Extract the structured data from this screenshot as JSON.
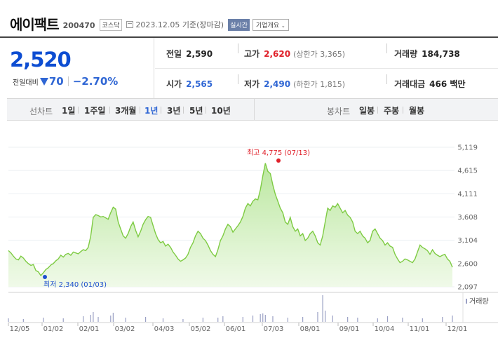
{
  "header": {
    "name": "에이팩트",
    "code": "200470",
    "market": "코스닥",
    "date": "2023.12.05",
    "basis": "기준(장마감)",
    "realtime_label": "실시간",
    "corp_label": "기업개요"
  },
  "price": {
    "current": "2,520",
    "change_label": "전일대비",
    "change": "70",
    "change_pct": "−2.70%"
  },
  "stats": {
    "prev_close_label": "전일",
    "prev_close": "2,590",
    "high_label": "고가",
    "high": "2,620",
    "upper_limit": "(상한가 3,365)",
    "volume_label": "거래량",
    "volume": "184,738",
    "open_label": "시가",
    "open": "2,565",
    "low_label": "저가",
    "low": "2,490",
    "lower_limit": "(하한가 1,815)",
    "amount_label": "거래대금",
    "amount": "466 백만"
  },
  "period_bar": {
    "line_label": "선차트",
    "line_items": [
      "1일",
      "1주일",
      "3개월",
      "1년",
      "3년",
      "5년",
      "10년"
    ],
    "active": "1년",
    "candle_label": "봉차트",
    "candle_items": [
      "일봉",
      "주봉",
      "월봉"
    ]
  },
  "colors": {
    "up": "#e0202a",
    "down": "#2f66d4",
    "line": "#7ecb43",
    "volume": "#9aa0c4"
  },
  "chart_data": {
    "type": "area",
    "ylim": [
      2097,
      5119
    ],
    "y_ticks": [
      "5,119",
      "4,615",
      "4,111",
      "3,608",
      "3,104",
      "2,600",
      "2,097"
    ],
    "x_ticks": [
      "12/05",
      "01/02",
      "02/01",
      "03/02",
      "04/03",
      "05/02",
      "06/01",
      "07/03",
      "08/01",
      "09/01",
      "10/04",
      "11/01",
      "12/01"
    ],
    "high_label": "최고 4,775 (07/13)",
    "low_label": "최저 2,340 (01/03)",
    "high_value": 4775,
    "low_value": 2340,
    "volume_label": "거래량",
    "series": [
      {
        "values": [
          2880,
          2830,
          2760,
          2700,
          2680,
          2760,
          2720,
          2650,
          2600,
          2560,
          2580,
          2450,
          2420,
          2340,
          2400,
          2470,
          2510,
          2570,
          2600,
          2660,
          2700,
          2780,
          2740,
          2800,
          2820,
          2780,
          2850,
          2830,
          2810,
          2860,
          2900,
          2880,
          2950,
          3200,
          3600,
          3660,
          3640,
          3610,
          3620,
          3590,
          3560,
          3700,
          3820,
          3780,
          3500,
          3350,
          3200,
          3150,
          3250,
          3400,
          3500,
          3320,
          3180,
          3300,
          3450,
          3550,
          3620,
          3600,
          3420,
          3250,
          3120,
          3050,
          3080,
          2980,
          3020,
          2950,
          2850,
          2780,
          2700,
          2650,
          2680,
          2720,
          2800,
          2950,
          3050,
          3200,
          3300,
          3250,
          3150,
          3100,
          3000,
          2880,
          2800,
          2750,
          2900,
          3100,
          3200,
          3350,
          3450,
          3400,
          3280,
          3350,
          3420,
          3500,
          3620,
          3800,
          3900,
          3850,
          3950,
          4000,
          3980,
          4200,
          4500,
          4775,
          4600,
          4550,
          4300,
          4100,
          3950,
          3800,
          3700,
          3500,
          3450,
          3600,
          3400,
          3300,
          3350,
          3200,
          3250,
          3100,
          3150,
          3250,
          3300,
          3200,
          3050,
          3000,
          3200,
          3500,
          3800,
          3750,
          3850,
          3820,
          3900,
          3800,
          3700,
          3750,
          3650,
          3600,
          3500,
          3300,
          3250,
          3300,
          3200,
          3150,
          3050,
          3100,
          3300,
          3350,
          3250,
          3150,
          3100,
          3000,
          3050,
          2980,
          2950,
          2800,
          2700,
          2620,
          2650,
          2700,
          2680,
          2650,
          2620,
          2700,
          2850,
          3000,
          2950,
          2920,
          2880,
          2800,
          2900,
          2820,
          2780,
          2750,
          2780,
          2800,
          2700,
          2650,
          2520
        ]
      }
    ],
    "volume": [
      {
        "i": 0,
        "v": 5
      },
      {
        "i": 6,
        "v": 4
      },
      {
        "i": 14,
        "v": 6
      },
      {
        "i": 22,
        "v": 5
      },
      {
        "i": 30,
        "v": 8
      },
      {
        "i": 33,
        "v": 10
      },
      {
        "i": 34,
        "v": 14
      },
      {
        "i": 36,
        "v": 7
      },
      {
        "i": 41,
        "v": 9
      },
      {
        "i": 42,
        "v": 13
      },
      {
        "i": 47,
        "v": 6
      },
      {
        "i": 55,
        "v": 7
      },
      {
        "i": 62,
        "v": 5
      },
      {
        "i": 70,
        "v": 4
      },
      {
        "i": 78,
        "v": 6
      },
      {
        "i": 84,
        "v": 6
      },
      {
        "i": 86,
        "v": 8
      },
      {
        "i": 94,
        "v": 7
      },
      {
        "i": 98,
        "v": 9
      },
      {
        "i": 101,
        "v": 11
      },
      {
        "i": 102,
        "v": 12
      },
      {
        "i": 103,
        "v": 10
      },
      {
        "i": 106,
        "v": 8
      },
      {
        "i": 112,
        "v": 6
      },
      {
        "i": 118,
        "v": 7
      },
      {
        "i": 124,
        "v": 14
      },
      {
        "i": 126,
        "v": 38
      },
      {
        "i": 127,
        "v": 16
      },
      {
        "i": 130,
        "v": 9
      },
      {
        "i": 136,
        "v": 7
      },
      {
        "i": 140,
        "v": 6
      },
      {
        "i": 148,
        "v": 5
      },
      {
        "i": 152,
        "v": 8
      },
      {
        "i": 158,
        "v": 6
      },
      {
        "i": 166,
        "v": 5
      },
      {
        "i": 174,
        "v": 7
      },
      {
        "i": 178,
        "v": 9
      }
    ]
  }
}
